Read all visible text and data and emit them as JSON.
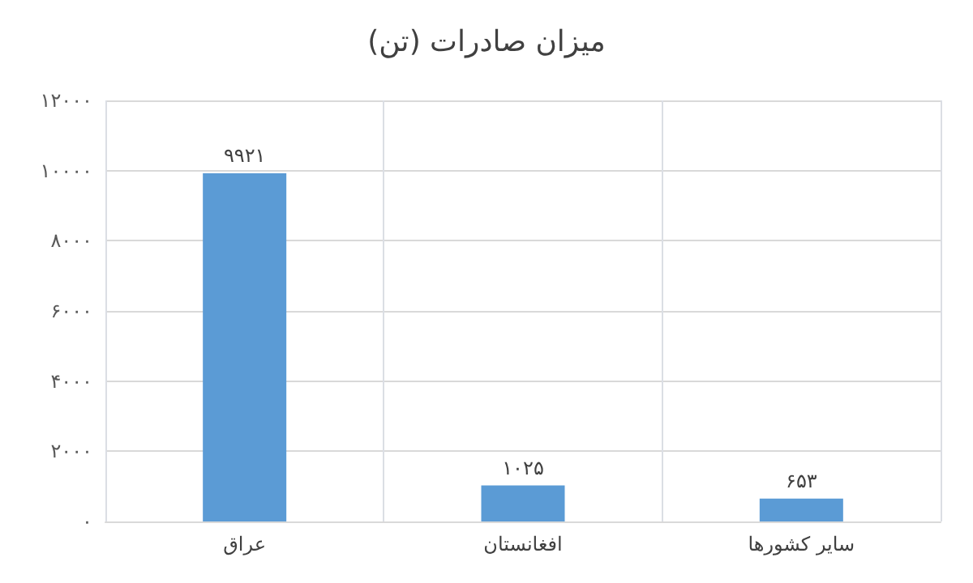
{
  "chart_data": {
    "type": "bar",
    "title": "میزان صادرات (تن)",
    "categories": [
      "عراق",
      "افغانستان",
      "سایر کشورها"
    ],
    "values": [
      9921,
      1025,
      653
    ],
    "value_labels": [
      "۹۹۲۱",
      "۱۰۲۵",
      "۶۵۳"
    ],
    "color": "#5b9bd5",
    "ylim": [
      0,
      12000
    ],
    "yticks": [
      {
        "value": 0,
        "label": "۰"
      },
      {
        "value": 2000,
        "label": "۲۰۰۰"
      },
      {
        "value": 4000,
        "label": "۴۰۰۰"
      },
      {
        "value": 6000,
        "label": "۶۰۰۰"
      },
      {
        "value": 8000,
        "label": "۸۰۰۰"
      },
      {
        "value": 10000,
        "label": "۱۰۰۰۰"
      },
      {
        "value": 12000,
        "label": "۱۲۰۰۰"
      }
    ],
    "grid": true
  }
}
